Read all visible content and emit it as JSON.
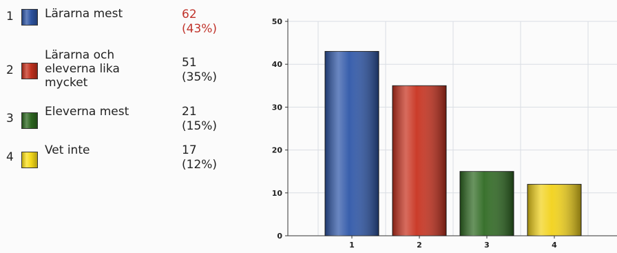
{
  "legend": [
    {
      "num": "1",
      "label": "Lärarna mest",
      "value": "62",
      "percent": "(43%)",
      "color": "#2f57a8",
      "highlight": true
    },
    {
      "num": "2",
      "label": "Lärarna och eleverna lika mycket",
      "value": "51",
      "percent": "(35%)",
      "color": "#c8321f",
      "highlight": false
    },
    {
      "num": "3",
      "label": "Eleverna mest",
      "value": "21",
      "percent": "(15%)",
      "color": "#2f6a22",
      "highlight": false
    },
    {
      "num": "4",
      "label": "Vet inte",
      "value": "17",
      "percent": "(12%)",
      "color": "#ffe21a",
      "highlight": false
    }
  ],
  "chart_data": {
    "type": "bar",
    "categories": [
      "1",
      "2",
      "3",
      "4"
    ],
    "values": [
      43,
      35,
      15,
      12
    ],
    "colors": [
      "#2f57a8",
      "#c8321f",
      "#2f6a22",
      "#f2d21a"
    ],
    "ylim": [
      0,
      50
    ],
    "yticks": [
      "0",
      "10",
      "20",
      "30",
      "40",
      "50"
    ],
    "grid": true
  }
}
